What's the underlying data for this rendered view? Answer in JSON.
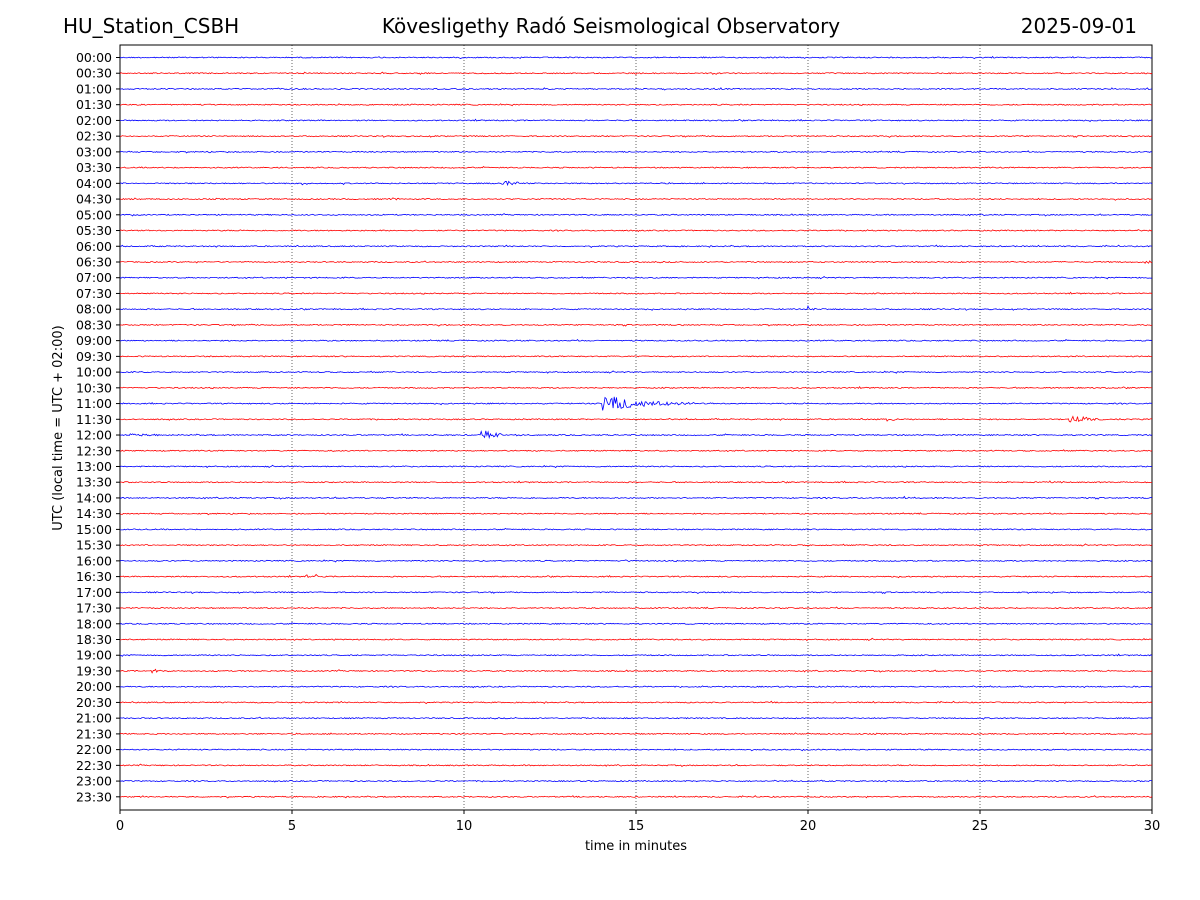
{
  "header": {
    "station": "HU_Station_CSBH",
    "observatory": "Kövesligethy Radó Seismological Observatory",
    "date": "2025-09-01"
  },
  "chart_data": {
    "type": "line",
    "title": "Kövesligethy Radó Seismological Observatory",
    "xlabel": "time in minutes",
    "ylabel": "UTC (local time = UTC + 02:00)",
    "xlim": [
      0,
      30
    ],
    "x_ticks": [
      "0",
      "5",
      "10",
      "15",
      "20",
      "25",
      "30"
    ],
    "grid": "vertical dotted at x ticks",
    "rows": [
      "00:00",
      "00:30",
      "01:00",
      "01:30",
      "02:00",
      "02:30",
      "03:00",
      "03:30",
      "04:00",
      "04:30",
      "05:00",
      "05:30",
      "06:00",
      "06:30",
      "07:00",
      "07:30",
      "08:00",
      "08:30",
      "09:00",
      "09:30",
      "10:00",
      "10:30",
      "11:00",
      "11:30",
      "12:00",
      "12:30",
      "13:00",
      "13:30",
      "14:00",
      "14:30",
      "15:00",
      "15:30",
      "16:00",
      "16:30",
      "17:00",
      "17:30",
      "18:00",
      "18:30",
      "19:00",
      "19:30",
      "20:00",
      "20:30",
      "21:00",
      "21:30",
      "22:00",
      "22:30",
      "23:00",
      "23:30"
    ],
    "colors": {
      "even_rows": "#0000ff",
      "odd_rows": "#ff0000"
    },
    "events": [
      {
        "row": "04:00",
        "x": 5.3,
        "amp": 0.25,
        "dur": 0.4
      },
      {
        "row": "04:00",
        "x": 11.1,
        "amp": 0.4,
        "dur": 1.2
      },
      {
        "row": "04:30",
        "x": 7.8,
        "amp": 0.25,
        "dur": 0.5
      },
      {
        "row": "06:30",
        "x": 29.8,
        "amp": 0.35,
        "dur": 0.3
      },
      {
        "row": "08:00",
        "x": 20.0,
        "amp": 0.3,
        "dur": 0.7
      },
      {
        "row": "11:00",
        "x": 14.0,
        "amp": 1.0,
        "dur": 3.2
      },
      {
        "row": "11:30",
        "x": 22.3,
        "amp": 0.25,
        "dur": 0.6
      },
      {
        "row": "11:30",
        "x": 27.6,
        "amp": 0.55,
        "dur": 1.6
      },
      {
        "row": "12:00",
        "x": 10.5,
        "amp": 0.65,
        "dur": 1.2
      },
      {
        "row": "12:00",
        "x": 0.3,
        "amp": 0.15,
        "dur": 1.5
      },
      {
        "row": "13:30",
        "x": 27.0,
        "amp": 0.15,
        "dur": 0.6
      },
      {
        "row": "14:00",
        "x": 22.7,
        "amp": 0.2,
        "dur": 0.6
      },
      {
        "row": "16:00",
        "x": 14.7,
        "amp": 0.2,
        "dur": 0.5
      },
      {
        "row": "16:30",
        "x": 5.4,
        "amp": 0.45,
        "dur": 0.15
      },
      {
        "row": "16:30",
        "x": 5.7,
        "amp": 0.4,
        "dur": 0.15
      },
      {
        "row": "19:30",
        "x": 0.9,
        "amp": 0.3,
        "dur": 0.6
      }
    ]
  }
}
